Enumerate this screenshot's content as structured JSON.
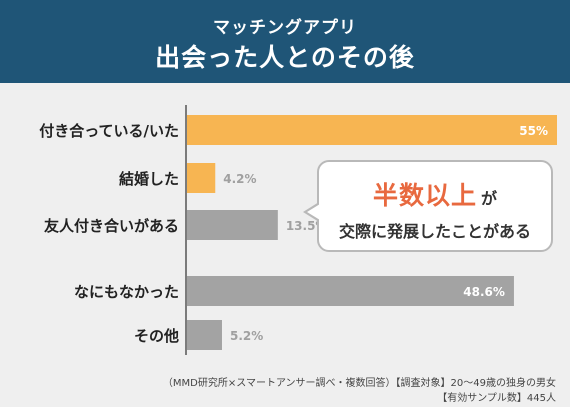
{
  "header": {
    "subtitle": "マッチングアプリ",
    "title": "出会った人とのその後"
  },
  "colors": {
    "header_bg": "#1f5577",
    "highlight_bar": "#f7b552",
    "normal_bar": "#a3a3a3",
    "callout_accent": "#e8693f"
  },
  "chart_data": {
    "type": "bar",
    "orientation": "horizontal",
    "title": "出会った人とのその後",
    "categories": [
      "付き合っている/いた",
      "結婚した",
      "友人付き合いがある",
      "なにもなかった",
      "その他"
    ],
    "values": [
      55,
      4.2,
      13.5,
      48.6,
      5.2
    ],
    "value_labels": [
      "55%",
      "4.2%",
      "13.5%",
      "48.6%",
      "5.2%"
    ],
    "highlight": [
      true,
      true,
      false,
      false,
      false
    ],
    "xlim": [
      0,
      55
    ],
    "grid": false,
    "legend": "none"
  },
  "callout": {
    "highlight": "半数以上",
    "suffix": "が",
    "line2": "交際に発展したことがある"
  },
  "footer": {
    "line1": "（MMD研究所×スマートアンサー調べ・複数回答）【調査対象】20〜49歳の独身の男女",
    "line2": "【有効サンプル数】445人"
  }
}
